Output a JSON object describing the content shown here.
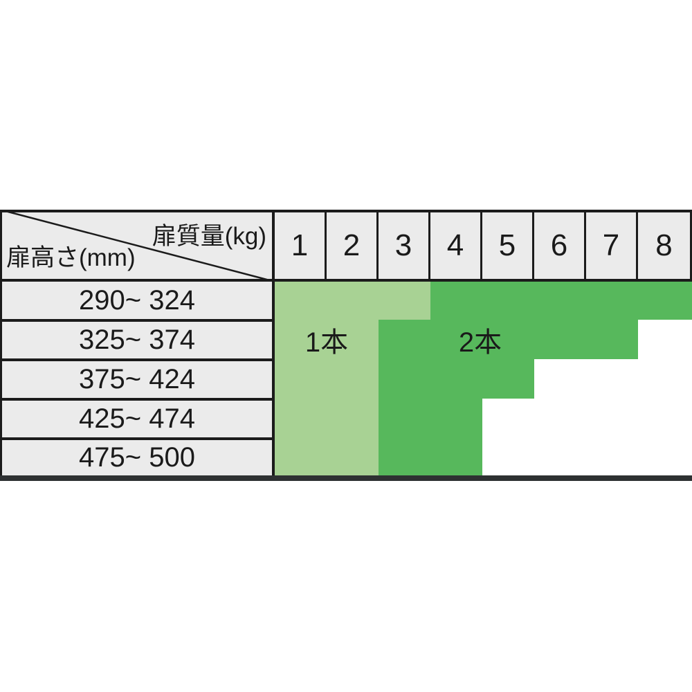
{
  "header": {
    "mass_label": "扉質量(kg)",
    "height_label": "扉高さ(mm)"
  },
  "columns": [
    "1",
    "2",
    "3",
    "4",
    "5",
    "6",
    "7",
    "8"
  ],
  "row_labels": [
    "290~ 324",
    "325~ 374",
    "375~ 424",
    "425~ 474",
    "475~ 500"
  ],
  "colors": {
    "light_green": "#a8d294",
    "dark_green": "#57b85c",
    "header_gray": "#ebebeb",
    "border_black": "#1b1b1b",
    "bottom_border": "#2e3132"
  },
  "chart_data": {
    "type": "table",
    "column_header": "扉質量(kg)",
    "row_header": "扉高さ(mm)",
    "columns": [
      1,
      2,
      3,
      4,
      5,
      6,
      7,
      8
    ],
    "rows": [
      "290~324",
      "325~374",
      "375~424",
      "425~474",
      "475~500"
    ],
    "regions": [
      {
        "label": "1本",
        "color": "#a8d294",
        "cols_by_row": [
          [
            1,
            3
          ],
          [
            1,
            2
          ],
          [
            1,
            2
          ],
          [
            1,
            2
          ],
          [
            1,
            2
          ]
        ]
      },
      {
        "label": "2本",
        "color": "#57b85c",
        "cols_by_row": [
          [
            4,
            8
          ],
          [
            3,
            7
          ],
          [
            3,
            5
          ],
          [
            3,
            4
          ],
          [
            3,
            4
          ]
        ]
      }
    ],
    "legend_position": "labels drawn inside their colored regions, second row"
  }
}
